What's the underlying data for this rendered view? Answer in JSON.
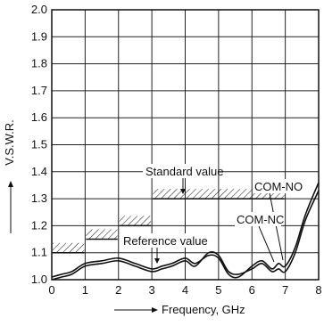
{
  "chart_data": {
    "type": "line",
    "xlabel": "Frequency, GHz",
    "ylabel": "V.S.W.R.",
    "xlim": [
      0,
      8
    ],
    "ylim": [
      1.0,
      2.0
    ],
    "x_ticks": [
      "0",
      "1",
      "2",
      "3",
      "4",
      "5",
      "6",
      "7",
      "8"
    ],
    "y_ticks": [
      "1.0",
      "1.1",
      "1.2",
      "1.3",
      "1.4",
      "1.5",
      "1.6",
      "1.7",
      "1.8",
      "1.9",
      "2.0"
    ],
    "grid": true,
    "annotations": {
      "standard_value": "Standard value",
      "reference_value": "Reference value",
      "com_no": "COM-NO",
      "com_nc": "COM-NC"
    },
    "standard_limit": [
      {
        "x0": 0,
        "x1": 1,
        "y": 1.1
      },
      {
        "x0": 1,
        "x1": 2,
        "y": 1.15
      },
      {
        "x0": 2,
        "x1": 3,
        "y": 1.2
      },
      {
        "x0": 3,
        "x1": 7,
        "y": 1.3
      }
    ],
    "series": [
      {
        "name": "COM-NO",
        "x": [
          0,
          0.3,
          0.6,
          1.0,
          1.5,
          2.0,
          2.5,
          3.0,
          3.3,
          3.6,
          4.0,
          4.3,
          4.7,
          5.0,
          5.3,
          5.6,
          6.0,
          6.3,
          6.6,
          6.8,
          7.0,
          7.3,
          7.6,
          8.0
        ],
        "y": [
          1.01,
          1.02,
          1.03,
          1.06,
          1.07,
          1.08,
          1.06,
          1.04,
          1.05,
          1.06,
          1.08,
          1.06,
          1.09,
          1.08,
          1.02,
          1.01,
          1.05,
          1.07,
          1.04,
          1.06,
          1.05,
          1.12,
          1.24,
          1.36
        ]
      },
      {
        "name": "COM-NC",
        "x": [
          0,
          0.3,
          0.6,
          1.0,
          1.5,
          2.0,
          2.5,
          3.0,
          3.3,
          3.6,
          4.0,
          4.3,
          4.7,
          5.0,
          5.3,
          5.6,
          6.0,
          6.3,
          6.6,
          6.8,
          7.0,
          7.3,
          7.6,
          8.0
        ],
        "y": [
          1.0,
          1.01,
          1.02,
          1.05,
          1.06,
          1.07,
          1.05,
          1.03,
          1.04,
          1.05,
          1.07,
          1.05,
          1.1,
          1.09,
          1.03,
          1.02,
          1.04,
          1.06,
          1.03,
          1.04,
          1.03,
          1.1,
          1.22,
          1.33
        ]
      }
    ]
  }
}
